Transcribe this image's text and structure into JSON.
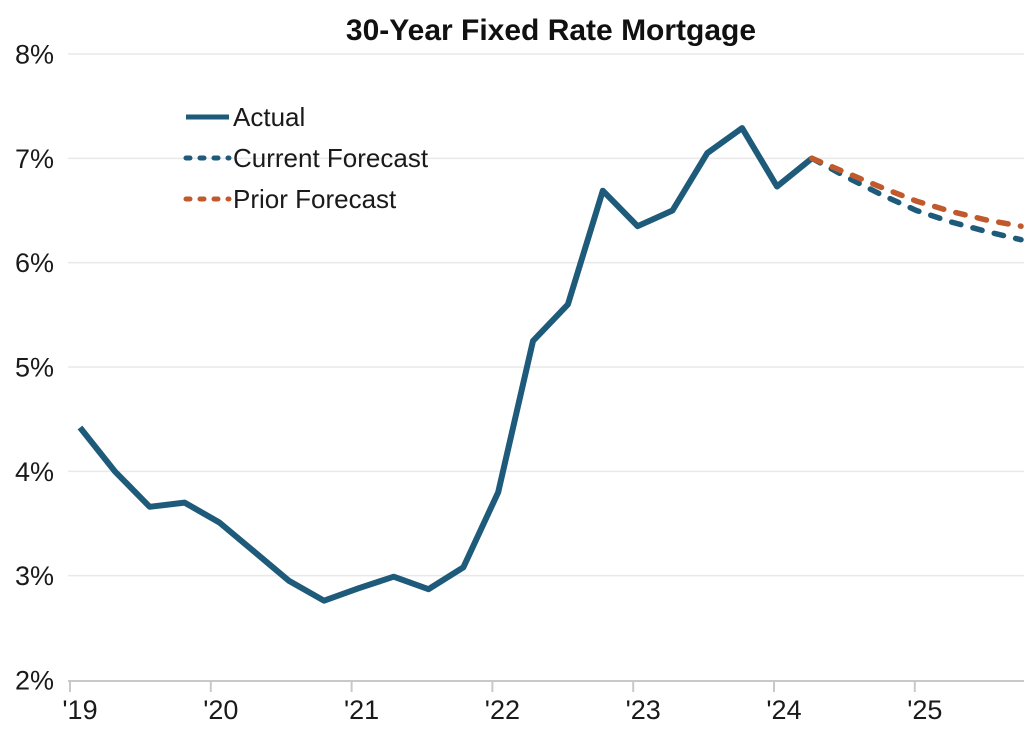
{
  "page": {
    "background_color": "#ffffff"
  },
  "chart_data": {
    "type": "line",
    "title": "30-Year Fixed Rate Mortgage",
    "xlabel": "",
    "ylabel": "",
    "ylim": [
      2,
      8
    ],
    "y_gridline_values": [
      2,
      3,
      4,
      5,
      6,
      7,
      8
    ],
    "y_tick_labels": [
      "2%",
      "3%",
      "4%",
      "5%",
      "6%",
      "7%",
      "8%"
    ],
    "x_tick_labels": [
      "'19",
      "'20",
      "'21",
      "'22",
      "'23",
      "'24",
      "'25"
    ],
    "x_quarters": [
      "2019 Q1",
      "2019 Q2",
      "2019 Q3",
      "2019 Q4",
      "2020 Q1",
      "2020 Q2",
      "2020 Q3",
      "2020 Q4",
      "2021 Q1",
      "2021 Q2",
      "2021 Q3",
      "2021 Q4",
      "2022 Q1",
      "2022 Q2",
      "2022 Q3",
      "2022 Q4",
      "2023 Q1",
      "2023 Q2",
      "2023 Q3",
      "2023 Q4",
      "2024 Q1",
      "2024 Q2",
      "2024 Q3",
      "2024 Q4",
      "2025 Q1",
      "2025 Q2",
      "2025 Q3",
      "2025 Q4"
    ],
    "series": [
      {
        "name": "Actual",
        "line_style": "solid",
        "color": "#1E5B7A",
        "start_quarter_index": 0,
        "values": [
          4.42,
          4.0,
          3.66,
          3.7,
          3.51,
          3.23,
          2.95,
          2.76,
          2.88,
          2.99,
          2.87,
          3.08,
          3.8,
          5.25,
          5.6,
          6.69,
          6.35,
          6.5,
          7.05,
          7.29,
          6.73,
          7.0
        ]
      },
      {
        "name": "Current Forecast",
        "line_style": "dashed",
        "color": "#1E5B7A",
        "start_quarter_index": 21,
        "values": [
          7.0,
          6.82,
          6.65,
          6.5,
          6.39,
          6.3,
          6.22
        ]
      },
      {
        "name": "Prior Forecast",
        "line_style": "dashed",
        "color": "#C05A2C",
        "start_quarter_index": 21,
        "values": [
          7.0,
          6.86,
          6.72,
          6.59,
          6.49,
          6.41,
          6.35
        ]
      }
    ],
    "legend_position": "top-left-inside",
    "grid_on": true,
    "grid_color": "#e9e9e9",
    "axis_color": "#c9c9c9",
    "text_color": "#1a1a1a"
  }
}
